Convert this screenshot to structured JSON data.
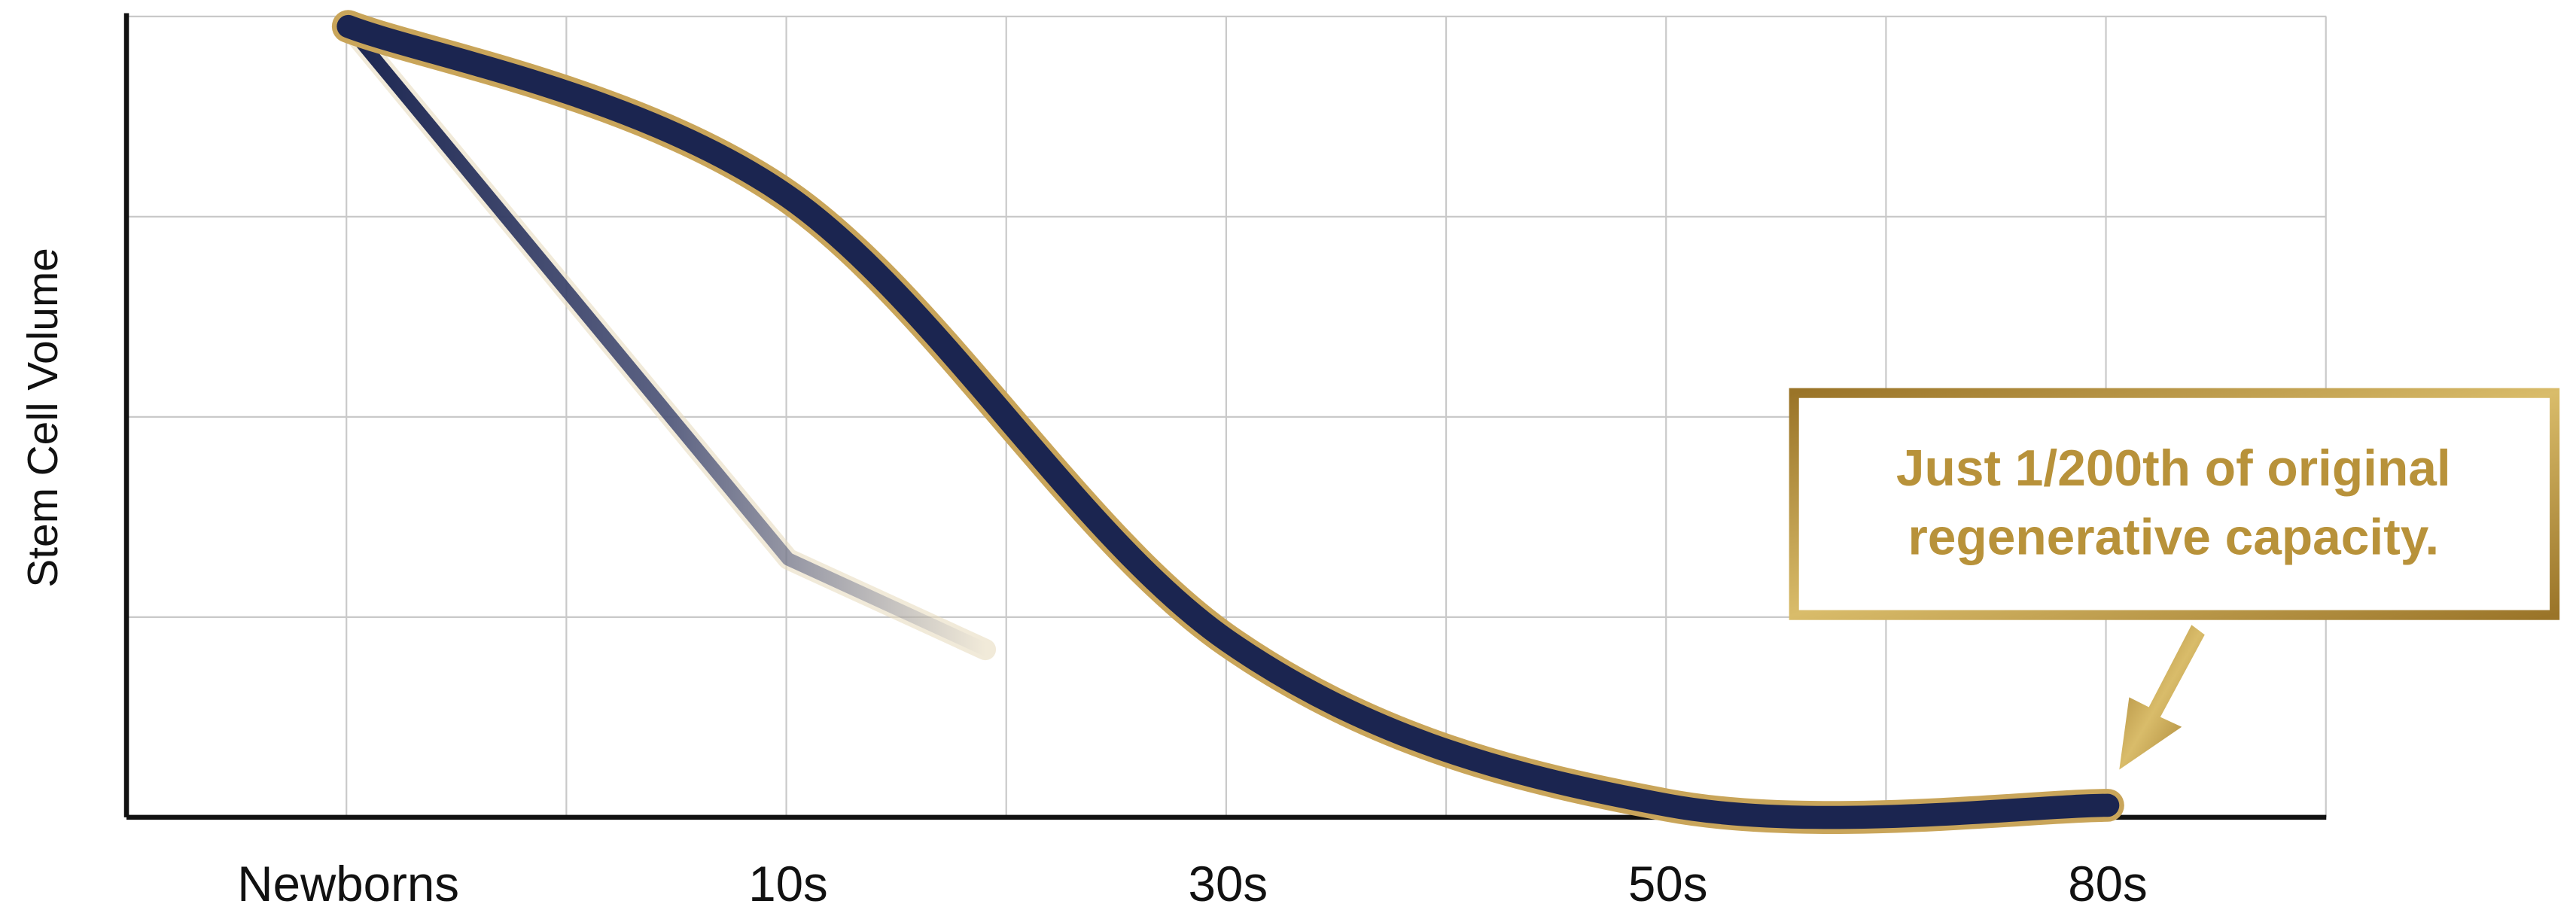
{
  "chart_data": {
    "type": "line",
    "y_label": "Stem Cell Volume",
    "categories": [
      "Newborns",
      "10s",
      "30s",
      "50s",
      "80s"
    ],
    "series": [
      {
        "color": "#1b2550",
        "values": [
          3.95,
          3.1,
          0.88,
          0.06,
          0.06
        ]
      },
      {
        "color": "#2a3566",
        "values": [
          3.95,
          1.29,
          null,
          null,
          null
        ]
      }
    ],
    "ylim": [
      0,
      4
    ],
    "grid": true,
    "annotation": [
      "Just 1/200th of original",
      "regenerative capacity."
    ],
    "annotation_color": "#b8923a"
  }
}
